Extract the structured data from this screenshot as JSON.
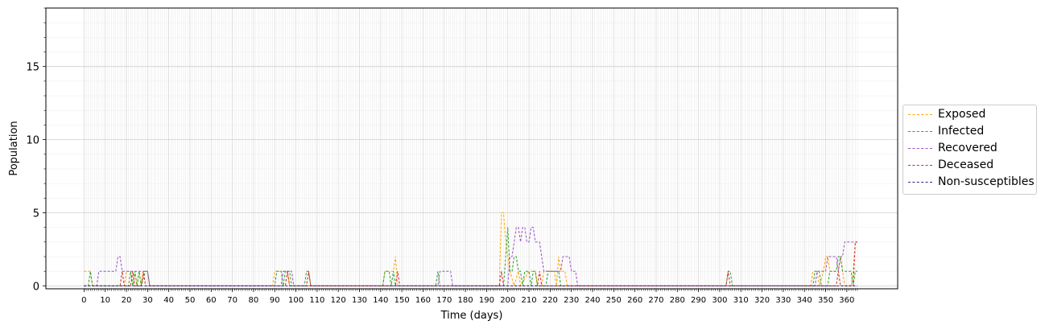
{
  "chart_data": {
    "type": "line",
    "xlabel": "Time (days)",
    "ylabel": "Population",
    "xlim": [
      -18,
      384
    ],
    "ylim": [
      -0.2,
      19
    ],
    "x_ticks": [
      0,
      10,
      20,
      30,
      40,
      50,
      60,
      70,
      80,
      90,
      100,
      110,
      120,
      130,
      140,
      150,
      160,
      170,
      180,
      190,
      200,
      210,
      220,
      230,
      240,
      250,
      260,
      270,
      280,
      290,
      300,
      310,
      320,
      330,
      340,
      350,
      360
    ],
    "y_ticks": [
      0,
      5,
      10,
      15
    ],
    "grid": true,
    "legend_position": "center-right, outside plot",
    "series": [
      {
        "name": "Exposed",
        "color": "#ffa500",
        "points": [
          [
            0,
            1
          ],
          [
            3,
            1
          ],
          [
            4,
            0
          ],
          [
            19,
            0
          ],
          [
            20,
            1
          ],
          [
            22,
            1
          ],
          [
            23,
            0
          ],
          [
            24,
            1
          ],
          [
            25,
            0
          ],
          [
            26,
            1
          ],
          [
            27,
            0
          ],
          [
            28,
            1
          ],
          [
            30,
            1
          ],
          [
            31,
            0
          ],
          [
            89,
            0
          ],
          [
            90,
            1
          ],
          [
            96,
            1
          ],
          [
            97,
            0
          ],
          [
            141,
            0
          ],
          [
            142,
            1
          ],
          [
            146,
            1
          ],
          [
            147,
            2
          ],
          [
            148,
            0
          ],
          [
            196,
            0
          ],
          [
            197,
            5
          ],
          [
            198,
            5
          ],
          [
            199,
            3
          ],
          [
            200,
            2
          ],
          [
            201,
            1
          ],
          [
            203,
            0
          ],
          [
            205,
            1
          ],
          [
            206,
            0
          ],
          [
            210,
            1
          ],
          [
            213,
            1
          ],
          [
            214,
            0
          ],
          [
            216,
            0
          ],
          [
            217,
            1
          ],
          [
            222,
            1
          ],
          [
            223,
            0
          ],
          [
            224,
            2
          ],
          [
            225,
            1
          ],
          [
            227,
            1
          ],
          [
            228,
            0
          ],
          [
            343,
            0
          ],
          [
            344,
            1
          ],
          [
            346,
            1
          ],
          [
            347,
            0
          ],
          [
            349,
            1
          ],
          [
            350,
            2
          ],
          [
            351,
            2
          ],
          [
            352,
            1
          ],
          [
            356,
            1
          ],
          [
            357,
            2
          ],
          [
            358,
            1
          ],
          [
            359,
            0
          ],
          [
            362,
            0
          ],
          [
            363,
            1
          ],
          [
            364,
            3
          ],
          [
            365,
            3
          ]
        ]
      },
      {
        "name": "Infected",
        "color": "#2ca02c",
        "points": [
          [
            0,
            0
          ],
          [
            2,
            0
          ],
          [
            3,
            1
          ],
          [
            4,
            0
          ],
          [
            21,
            0
          ],
          [
            22,
            1
          ],
          [
            23,
            0
          ],
          [
            24,
            1
          ],
          [
            25,
            0
          ],
          [
            26,
            1
          ],
          [
            27,
            0
          ],
          [
            29,
            1
          ],
          [
            30,
            1
          ],
          [
            31,
            0
          ],
          [
            90,
            0
          ],
          [
            91,
            1
          ],
          [
            93,
            1
          ],
          [
            94,
            0
          ],
          [
            95,
            1
          ],
          [
            97,
            1
          ],
          [
            98,
            0
          ],
          [
            104,
            0
          ],
          [
            105,
            1
          ],
          [
            106,
            1
          ],
          [
            107,
            0
          ],
          [
            141,
            0
          ],
          [
            142,
            1
          ],
          [
            144,
            1
          ],
          [
            145,
            0
          ],
          [
            146,
            1
          ],
          [
            147,
            0
          ],
          [
            166,
            0
          ],
          [
            167,
            1
          ],
          [
            168,
            0
          ],
          [
            198,
            0
          ],
          [
            199,
            2
          ],
          [
            200,
            4
          ],
          [
            201,
            1
          ],
          [
            202,
            1
          ],
          [
            203,
            2
          ],
          [
            204,
            2
          ],
          [
            205,
            1
          ],
          [
            206,
            1
          ],
          [
            207,
            0
          ],
          [
            208,
            1
          ],
          [
            210,
            1
          ],
          [
            211,
            0
          ],
          [
            212,
            1
          ],
          [
            213,
            1
          ],
          [
            214,
            0
          ],
          [
            218,
            0
          ],
          [
            219,
            1
          ],
          [
            224,
            1
          ],
          [
            225,
            0
          ],
          [
            303,
            0
          ],
          [
            304,
            1
          ],
          [
            305,
            1
          ],
          [
            306,
            0
          ],
          [
            344,
            0
          ],
          [
            345,
            1
          ],
          [
            347,
            1
          ],
          [
            348,
            0
          ],
          [
            351,
            0
          ],
          [
            352,
            1
          ],
          [
            355,
            1
          ],
          [
            356,
            2
          ],
          [
            357,
            2
          ],
          [
            358,
            1
          ],
          [
            362,
            1
          ],
          [
            363,
            0
          ],
          [
            364,
            1
          ],
          [
            365,
            1
          ]
        ]
      },
      {
        "name": "Recovered",
        "color": "#9b4fc7",
        "points": [
          [
            0,
            0
          ],
          [
            6,
            0
          ],
          [
            7,
            1
          ],
          [
            15,
            1
          ],
          [
            16,
            2
          ],
          [
            17,
            2
          ],
          [
            18,
            1
          ],
          [
            30,
            1
          ],
          [
            31,
            0
          ],
          [
            93,
            0
          ],
          [
            94,
            1
          ],
          [
            98,
            1
          ],
          [
            99,
            0
          ],
          [
            167,
            0
          ],
          [
            168,
            1
          ],
          [
            173,
            1
          ],
          [
            174,
            0
          ],
          [
            200,
            0
          ],
          [
            201,
            2
          ],
          [
            202,
            2
          ],
          [
            203,
            3
          ],
          [
            204,
            4
          ],
          [
            205,
            4
          ],
          [
            206,
            3
          ],
          [
            207,
            4
          ],
          [
            208,
            4
          ],
          [
            209,
            3
          ],
          [
            210,
            3
          ],
          [
            211,
            4
          ],
          [
            212,
            4
          ],
          [
            213,
            3
          ],
          [
            215,
            3
          ],
          [
            216,
            2
          ],
          [
            217,
            1
          ],
          [
            224,
            1
          ],
          [
            225,
            1
          ],
          [
            226,
            2
          ],
          [
            229,
            2
          ],
          [
            230,
            1
          ],
          [
            232,
            1
          ],
          [
            233,
            0
          ],
          [
            345,
            0
          ],
          [
            346,
            1
          ],
          [
            350,
            1
          ],
          [
            351,
            2
          ],
          [
            354,
            2
          ],
          [
            355,
            2
          ],
          [
            356,
            1
          ],
          [
            357,
            2
          ],
          [
            358,
            2
          ],
          [
            359,
            3
          ],
          [
            365,
            3
          ]
        ]
      },
      {
        "name": "Deceased",
        "color": "#d62728",
        "points": [
          [
            0,
            0
          ],
          [
            17,
            0
          ],
          [
            18,
            1
          ],
          [
            19,
            0
          ],
          [
            22,
            0
          ],
          [
            23,
            1
          ],
          [
            24,
            0
          ],
          [
            27,
            0
          ],
          [
            28,
            1
          ],
          [
            29,
            0
          ],
          [
            95,
            0
          ],
          [
            96,
            1
          ],
          [
            97,
            0
          ],
          [
            105,
            0
          ],
          [
            106,
            1
          ],
          [
            107,
            0
          ],
          [
            147,
            0
          ],
          [
            148,
            1
          ],
          [
            149,
            0
          ],
          [
            196,
            0
          ],
          [
            197,
            1
          ],
          [
            198,
            0
          ],
          [
            214,
            0
          ],
          [
            215,
            1
          ],
          [
            216,
            0
          ],
          [
            303,
            0
          ],
          [
            304,
            1
          ],
          [
            305,
            0
          ],
          [
            355,
            0
          ],
          [
            356,
            1
          ],
          [
            357,
            0
          ],
          [
            363,
            0
          ],
          [
            364,
            3
          ],
          [
            365,
            3
          ]
        ]
      },
      {
        "name": "Non-susceptibles",
        "color": "#2b2b7f",
        "points": [
          [
            0,
            0
          ],
          [
            365,
            0
          ]
        ]
      }
    ]
  }
}
